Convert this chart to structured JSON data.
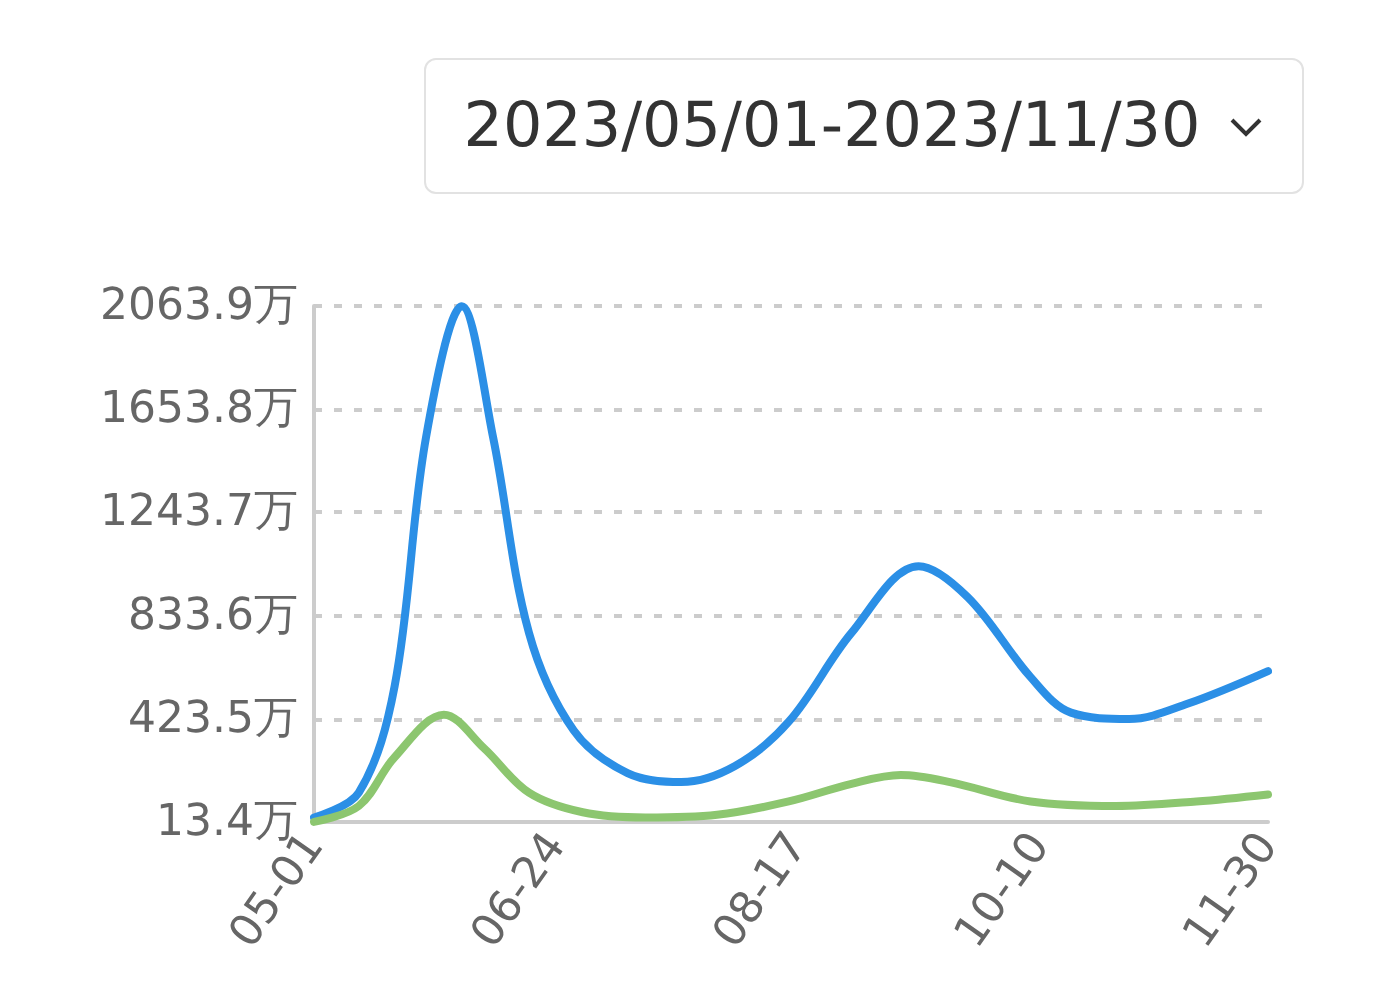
{
  "chart_data": {
    "type": "line",
    "annotations": [
      "2023/05/01-2023/11/30"
    ],
    "xlim": [
      "2023-05-01",
      "2023-11-30"
    ],
    "xticks": [
      {
        "value": "2023-05-01",
        "label": "05-01"
      },
      {
        "value": "2023-06-24",
        "label": "06-24"
      },
      {
        "value": "2023-08-17",
        "label": "08-17"
      },
      {
        "value": "2023-10-10",
        "label": "10-10"
      },
      {
        "value": "2023-11-30",
        "label": "11-30"
      }
    ],
    "ylim": [
      13.4,
      2063.9
    ],
    "yticks": [
      {
        "value": 13.4,
        "label": "13.4万"
      },
      {
        "value": 423.5,
        "label": "423.5万"
      },
      {
        "value": 833.6,
        "label": "833.6万"
      },
      {
        "value": 1243.7,
        "label": "1243.7万"
      },
      {
        "value": 1653.8,
        "label": "1653.8万"
      },
      {
        "value": 2063.9,
        "label": "2063.9万"
      }
    ],
    "grid": "y",
    "line_style": "solid",
    "marker": "none",
    "series": [
      {
        "color": "#2b8fe6",
        "x": [
          "2023-05-01",
          "2023-05-11",
          "2023-05-19",
          "2023-05-26",
          "2023-06-03",
          "2023-06-10",
          "2023-06-18",
          "2023-06-28",
          "2023-07-10",
          "2023-07-22",
          "2023-08-03",
          "2023-08-15",
          "2023-08-29",
          "2023-09-13",
          "2023-09-24",
          "2023-10-08",
          "2023-10-17",
          "2023-10-30",
          "2023-11-12",
          "2023-11-30"
        ],
        "values": [
          31,
          130,
          553,
          1541,
          2063,
          1541,
          765,
          377,
          208,
          172,
          236,
          412,
          765,
          1030,
          906,
          589,
          448,
          423,
          483,
          613
        ]
      },
      {
        "color": "#8cc66f",
        "x": [
          "2023-05-01",
          "2023-05-11",
          "2023-05-19",
          "2023-05-30",
          "2023-06-08",
          "2023-06-18",
          "2023-06-30",
          "2023-07-14",
          "2023-07-30",
          "2023-08-15",
          "2023-08-29",
          "2023-09-09",
          "2023-09-20",
          "2023-10-08",
          "2023-10-27",
          "2023-11-14",
          "2023-11-30"
        ],
        "values": [
          14,
          77,
          271,
          440,
          306,
          130,
          52,
          31,
          42,
          95,
          165,
          200,
          172,
          95,
          77,
          95,
          123
        ]
      }
    ]
  }
}
